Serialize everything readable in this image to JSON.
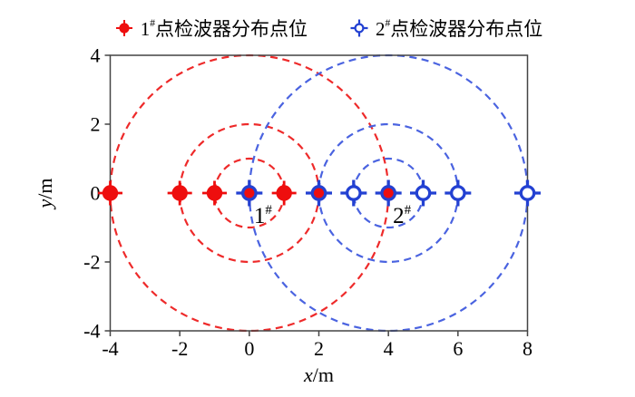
{
  "figure": {
    "background": "#ffffff",
    "frame_color": "#444444"
  },
  "legend": {
    "items": [
      {
        "num": "1",
        "sup": "#",
        "text": "点检波器分布点位",
        "marker": "filled-crosshair",
        "color": "#ee0e0e"
      },
      {
        "num": "2",
        "sup": "#",
        "text": "点检波器分布点位",
        "marker": "open-crosshair",
        "color": "#2341d2"
      }
    ]
  },
  "chart_data": {
    "type": "scatter",
    "title": "",
    "xlabel": "x/m",
    "ylabel": "y/m",
    "xlim": [
      -4,
      8
    ],
    "ylim": [
      -4,
      4
    ],
    "xticks": [
      -4,
      -2,
      0,
      2,
      4,
      6,
      8
    ],
    "yticks": [
      -4,
      -2,
      0,
      2,
      4
    ],
    "grid": false,
    "legend_position": "top-center",
    "series": [
      {
        "name": "1#点检波器分布点位",
        "marker": "filled-crosshair",
        "marker_color": "#ee0e0e",
        "circle_color": "#ee2a2a",
        "center": [
          0,
          0
        ],
        "dashed_circle_radii": [
          1,
          2,
          4
        ],
        "points": [
          [
            -4,
            0
          ],
          [
            -2,
            0
          ],
          [
            -1,
            0
          ],
          [
            0,
            0
          ],
          [
            1,
            0
          ],
          [
            2,
            0
          ],
          [
            4,
            0
          ]
        ],
        "annotation": {
          "num": "1",
          "sup": "#"
        }
      },
      {
        "name": "2#点检波器分布点位",
        "marker": "open-crosshair",
        "marker_color": "#2341d2",
        "circle_color": "#4a63e0",
        "center": [
          4,
          0
        ],
        "dashed_circle_radii": [
          1,
          2,
          4
        ],
        "points": [
          [
            0,
            0
          ],
          [
            2,
            0
          ],
          [
            3,
            0
          ],
          [
            4,
            0
          ],
          [
            5,
            0
          ],
          [
            6,
            0
          ],
          [
            8,
            0
          ]
        ],
        "annotation": {
          "num": "2",
          "sup": "#"
        }
      }
    ]
  }
}
